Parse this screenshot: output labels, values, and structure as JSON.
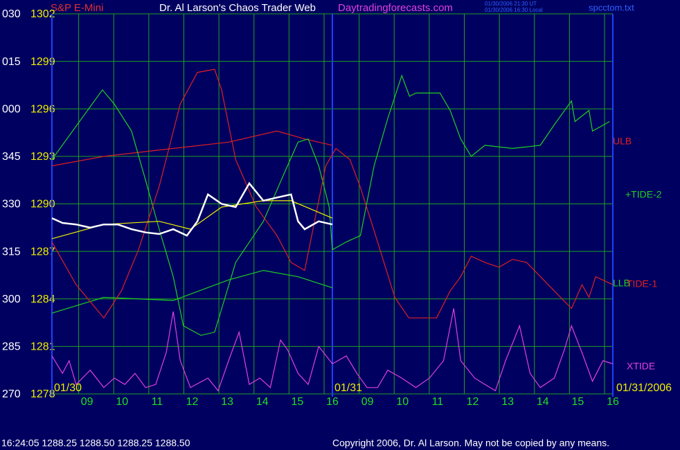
{
  "chart_data": {
    "type": "line",
    "instrument": "S&P E-Mini",
    "title": "Dr. Al Larson's Chaos Trader Web",
    "website": "Daytradingforecasts.com",
    "timestamps": [
      "01/30/2006 21:30 UT",
      "01/30/2006 16:30 Local"
    ],
    "file": "spcctom.txt",
    "date_labels": [
      "01/30",
      "01/31",
      "01/31/2006"
    ],
    "quote": "16:24:05  1288.25 1288.50 1288.25 1288.50",
    "copyright": "Copyright 2006, Dr. Al Larson. May not be copied by any means.",
    "xlim": [
      8,
      24
    ],
    "xticks": [
      {
        "value": 9,
        "label": "09"
      },
      10,
      11,
      12,
      13,
      14,
      15,
      16,
      {
        "value": 17,
        "label": "09"
      },
      {
        "value": 18,
        "label": "10"
      },
      {
        "value": 19,
        "label": "11"
      },
      {
        "value": 20,
        "label": "12"
      },
      {
        "value": 21,
        "label": "13"
      },
      {
        "value": 22,
        "label": "14"
      },
      {
        "value": 23,
        "label": "15"
      },
      {
        "value": 24,
        "label": "16"
      }
    ],
    "ylim": [
      1278,
      1302
    ],
    "yticks": [
      1278,
      1281,
      1284,
      1287,
      1290,
      1293,
      1296,
      1299,
      1302
    ],
    "y2lim": [
      270,
      390
    ],
    "y2ticks": [
      270,
      285,
      300,
      315,
      330,
      345,
      {
        "value": 360,
        "label": "000"
      },
      {
        "value": 375,
        "label": "015"
      },
      {
        "value": 390,
        "label": "030"
      }
    ],
    "grid": true,
    "series": [
      {
        "name": "ULB",
        "color": "#e02020",
        "x": [
          8,
          9.48,
          11.46,
          13.04,
          14.42,
          15.21,
          16.0
        ],
        "values": [
          1292.4,
          1293.0,
          1293.5,
          1293.9,
          1294.6,
          1294.1,
          1293.7
        ]
      },
      {
        "name": "+TIDE-2",
        "color": "#20d020",
        "x": [
          8,
          9.44,
          9.78,
          10.27,
          10.67,
          11.06,
          11.46,
          11.75,
          12.25,
          12.64,
          13.24,
          14.03,
          14.62,
          15.02,
          15.31,
          15.61,
          15.91,
          16.0,
          16.4,
          16.8,
          17.19,
          17.58,
          17.98,
          18.2,
          18.38,
          19.07,
          19.36,
          19.66,
          19.96,
          20.35,
          21.14,
          21.93,
          22.33,
          22.82,
          22.92,
          23.32,
          23.42,
          23.91
        ],
        "values": [
          1292.8,
          1297.2,
          1296.3,
          1294.6,
          1291.5,
          1288.4,
          1285.4,
          1282.3,
          1281.7,
          1281.9,
          1286.3,
          1288.9,
          1291.9,
          1293.9,
          1294.1,
          1292.4,
          1289.8,
          1287.1,
          1287.6,
          1288.0,
          1292.4,
          1295.4,
          1298.1,
          1296.8,
          1297.0,
          1297.0,
          1295.9,
          1294.1,
          1293.0,
          1293.7,
          1293.5,
          1293.7,
          1295.0,
          1296.5,
          1295.2,
          1295.9,
          1294.6,
          1295.2
        ]
      },
      {
        "name": "LLB",
        "color": "#20d020",
        "x": [
          8,
          9.48,
          11.46,
          13.04,
          14.03,
          15.02,
          16.0
        ],
        "values": [
          1283.1,
          1284.1,
          1283.9,
          1285.2,
          1285.8,
          1285.4,
          1284.7
        ]
      },
      {
        "name": "TIDE-1",
        "color": "#e02020",
        "x": [
          8,
          8.69,
          9.48,
          9.98,
          10.47,
          11.06,
          11.66,
          12.15,
          12.64,
          12.84,
          13.24,
          13.83,
          14.42,
          14.82,
          15.21,
          15.81,
          16.1,
          16.5,
          16.79,
          17.29,
          17.78,
          18.18,
          18.97,
          19.36,
          19.66,
          19.96,
          20.35,
          20.75,
          21.14,
          21.54,
          22.33,
          22.82,
          23.12,
          23.32,
          23.51,
          24.0
        ],
        "values": [
          1287.6,
          1284.9,
          1282.8,
          1284.5,
          1287.1,
          1291.1,
          1296.3,
          1298.3,
          1298.5,
          1297.2,
          1292.8,
          1289.8,
          1288.0,
          1286.3,
          1285.8,
          1292.4,
          1293.5,
          1292.8,
          1291.1,
          1287.6,
          1284.1,
          1282.8,
          1282.8,
          1284.5,
          1285.4,
          1286.7,
          1286.3,
          1286.0,
          1286.5,
          1286.3,
          1284.5,
          1283.4,
          1284.9,
          1284.1,
          1285.4,
          1284.9
        ]
      },
      {
        "name": "XTIDE",
        "color": "#e040e0",
        "x": [
          8,
          8.3,
          8.49,
          8.69,
          9.09,
          9.48,
          9.78,
          10.08,
          10.37,
          10.67,
          10.96,
          11.26,
          11.46,
          11.66,
          11.95,
          12.45,
          12.74,
          13.04,
          13.34,
          13.63,
          13.93,
          14.23,
          14.52,
          14.72,
          15.02,
          15.31,
          15.61,
          16.0,
          16.4,
          16.7,
          16.99,
          17.29,
          17.58,
          17.98,
          18.38,
          18.77,
          19.17,
          19.46,
          19.66,
          20.06,
          20.35,
          20.65,
          20.94,
          21.34,
          21.64,
          21.93,
          22.33,
          22.62,
          22.82,
          23.12,
          23.42,
          23.72,
          24.0
        ],
        "values": [
          1280.4,
          1279.3,
          1280.1,
          1278.6,
          1279.5,
          1278.4,
          1279.0,
          1278.6,
          1279.3,
          1278.4,
          1278.6,
          1280.6,
          1283.2,
          1280.1,
          1278.4,
          1279.0,
          1278.2,
          1280.1,
          1281.9,
          1278.6,
          1279.0,
          1278.4,
          1281.4,
          1280.8,
          1279.3,
          1278.6,
          1281.0,
          1279.9,
          1280.4,
          1279.3,
          1278.4,
          1278.4,
          1279.5,
          1279.0,
          1278.4,
          1279.0,
          1280.1,
          1283.4,
          1280.1,
          1279.0,
          1278.6,
          1278.2,
          1280.1,
          1282.3,
          1279.3,
          1278.4,
          1279.0,
          1280.8,
          1282.3,
          1280.6,
          1278.8,
          1280.1,
          1279.9
        ]
      },
      {
        "color": "#f0f000",
        "x": [
          8,
          9.48,
          11.06,
          11.95,
          12.84,
          14.03,
          14.82,
          16.0
        ],
        "values": [
          1287.8,
          1288.7,
          1288.9,
          1288.4,
          1289.8,
          1290.2,
          1290.2,
          1289.1
        ]
      },
      {
        "color": "#ffffff",
        "x": [
          8,
          8.3,
          8.69,
          9.09,
          9.48,
          9.88,
          10.27,
          10.67,
          11.06,
          11.46,
          11.85,
          12.15,
          12.45,
          12.84,
          13.24,
          13.63,
          14.03,
          14.42,
          14.82,
          15.02,
          15.21,
          15.61,
          16.0
        ],
        "values": [
          1289.1,
          1288.8,
          1288.7,
          1288.5,
          1288.7,
          1288.7,
          1288.4,
          1288.2,
          1288.1,
          1288.4,
          1288.0,
          1288.9,
          1290.6,
          1290.0,
          1289.8,
          1291.3,
          1290.2,
          1290.4,
          1290.6,
          1288.9,
          1288.4,
          1288.9,
          1288.7
        ]
      }
    ]
  }
}
